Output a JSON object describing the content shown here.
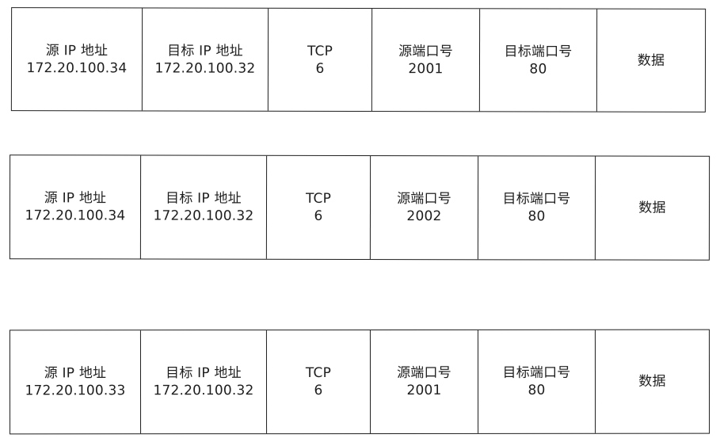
{
  "packets": [
    {
      "src_ip_label": "源 IP 地址",
      "src_ip": "172.20.100.34",
      "dst_ip_label": "目标 IP 地址",
      "dst_ip": "172.20.100.32",
      "protocol_label": "TCP",
      "protocol_value": "6",
      "src_port_label": "源端口号",
      "src_port": "2001",
      "dst_port_label": "目标端口号",
      "dst_port": "80",
      "data_label": "数据"
    },
    {
      "src_ip_label": "源 IP 地址",
      "src_ip": "172.20.100.34",
      "dst_ip_label": "目标 IP 地址",
      "dst_ip": "172.20.100.32",
      "protocol_label": "TCP",
      "protocol_value": "6",
      "src_port_label": "源端口号",
      "src_port": "2002",
      "dst_port_label": "目标端口号",
      "dst_port": "80",
      "data_label": "数据"
    },
    {
      "src_ip_label": "源 IP 地址",
      "src_ip": "172.20.100.33",
      "dst_ip_label": "目标 IP 地址",
      "dst_ip": "172.20.100.32",
      "protocol_label": "TCP",
      "protocol_value": "6",
      "src_port_label": "源端口号",
      "src_port": "2001",
      "dst_port_label": "目标端口号",
      "dst_port": "80",
      "data_label": "数据"
    }
  ]
}
